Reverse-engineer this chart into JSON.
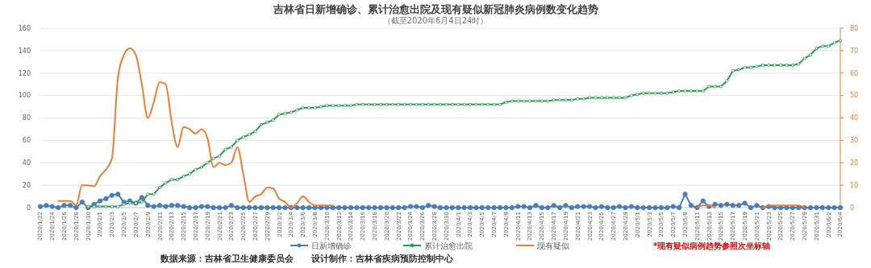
{
  "chart_data": {
    "type": "line",
    "title": "吉林省日新增确诊、累计治愈出院及现有疑似新冠肺炎病例数变化趋势",
    "subtitle": "（截至2020年6月4日24时）",
    "categories": [
      "2020/1/22",
      null,
      "2020/1/24",
      null,
      "2020/1/26",
      null,
      "2020/1/28",
      null,
      "2020/1/30",
      null,
      "2020/2/1",
      null,
      "2020/2/3",
      null,
      "2020/2/5",
      null,
      "2020/2/7",
      null,
      "2020/2/9",
      null,
      "2020/2/11",
      null,
      "2020/2/13",
      null,
      "2020/2/15",
      null,
      "2020/2/17",
      null,
      "2020/2/19",
      null,
      "2020/2/21",
      null,
      "2020/2/23",
      null,
      "2020/2/25",
      null,
      "2020/2/27",
      null,
      "2020/2/29",
      null,
      "2020/3/2",
      null,
      "2020/3/4",
      null,
      "2020/3/6",
      null,
      "2020/3/8",
      null,
      "2020/3/10",
      null,
      "2020/3/12",
      null,
      "2020/3/14",
      null,
      "2020/3/16",
      null,
      "2020/3/18",
      null,
      "2020/3/20",
      null,
      "2020/3/22",
      null,
      "2020/3/24",
      null,
      "2020/3/26",
      null,
      "2020/3/28",
      null,
      "2020/3/30",
      null,
      "2020/4/1",
      null,
      "2020/4/3",
      null,
      "2020/4/5",
      null,
      "2020/4/7",
      null,
      "2020/4/9",
      null,
      "2020/4/11",
      null,
      "2020/4/13",
      null,
      "2020/4/15",
      null,
      "2020/4/17",
      null,
      "2020/4/19",
      null,
      "2020/4/21",
      null,
      "2020/4/23",
      null,
      "2020/4/25",
      null,
      "2020/4/27",
      null,
      "2020/4/29",
      null,
      "2020/5/1",
      null,
      "2020/5/3",
      null,
      "2020/5/5",
      null,
      "2020/5/7",
      null,
      "2020/5/9",
      null,
      "2020/5/11",
      null,
      "2020/5/13",
      null,
      "2020/5/15",
      null,
      "2020/5/17",
      null,
      "2020/5/19",
      null,
      "2020/5/21",
      null,
      "2020/5/23",
      null,
      "2020/5/25",
      null,
      "2020/5/27",
      null,
      "2020/5/29",
      null,
      "2020/5/31",
      null,
      "2020/6/2",
      null,
      "2020/6/4"
    ],
    "series": [
      {
        "name": "日新增确诊",
        "color": "#4a7ebb",
        "values": [
          1,
          2,
          1,
          0,
          2,
          2,
          0,
          5,
          0,
          3,
          6,
          8,
          11,
          12,
          5,
          6,
          4,
          9,
          2,
          1,
          2,
          1,
          2,
          2,
          1,
          0,
          0,
          1,
          1,
          0,
          0,
          0,
          2,
          0,
          0,
          0,
          0,
          0,
          0,
          0,
          0,
          0,
          0,
          0,
          0,
          0,
          0,
          0,
          0,
          0,
          0,
          0,
          0,
          0,
          0,
          0,
          0,
          0,
          0,
          0,
          0,
          0,
          1,
          1,
          0,
          2,
          1,
          0,
          0,
          0,
          0,
          0,
          0,
          0,
          0,
          0,
          0,
          0,
          0,
          0,
          1,
          1,
          0,
          2,
          0,
          0,
          2,
          0,
          2,
          0,
          1,
          1,
          1,
          0,
          1,
          0,
          0,
          1,
          0,
          1,
          0,
          0,
          0,
          0,
          0,
          0,
          1,
          0,
          12,
          2,
          0,
          6,
          1,
          3,
          2,
          3,
          2,
          2,
          4,
          0,
          2,
          0,
          1,
          0,
          0,
          0,
          0,
          0,
          0,
          0,
          0,
          0,
          0,
          0,
          0
        ]
      },
      {
        "name": "累计治愈出院",
        "color": "#2e9c4f",
        "values": [
          null,
          null,
          null,
          null,
          null,
          null,
          null,
          null,
          1,
          1,
          1,
          1,
          1,
          1,
          3,
          4,
          4,
          5,
          12,
          12,
          18,
          22,
          25,
          25,
          28,
          30,
          34,
          36,
          40,
          44,
          46,
          52,
          54,
          60,
          63,
          65,
          68,
          74,
          76,
          78,
          83,
          84,
          85,
          87,
          89,
          89,
          89,
          90,
          91,
          91,
          91,
          91,
          91,
          92,
          92,
          92,
          92,
          92,
          92,
          92,
          92,
          92,
          92,
          92,
          92,
          92,
          92,
          92,
          92,
          92,
          92,
          92,
          92,
          92,
          92,
          92,
          92,
          92,
          94,
          95,
          95,
          95,
          95,
          95,
          95,
          95,
          96,
          96,
          96,
          96,
          97,
          97,
          98,
          98,
          98,
          98,
          98,
          98,
          98,
          100,
          101,
          102,
          102,
          102,
          102,
          102,
          103,
          104,
          104,
          104,
          104,
          104,
          108,
          108,
          108,
          113,
          122,
          123,
          125,
          125,
          126,
          127,
          127,
          127,
          127,
          127,
          127,
          128,
          133,
          136,
          142,
          144,
          144,
          147,
          149
        ]
      },
      {
        "name": "现有疑似",
        "color": "#ed7d31",
        "axis": "y2",
        "marker": "none",
        "values": [
          null,
          null,
          null,
          3,
          3,
          3,
          1,
          10,
          10,
          9.5,
          14,
          17,
          22,
          58,
          68,
          71,
          68,
          55,
          40,
          47,
          56,
          55,
          38,
          27,
          36,
          35,
          33,
          35,
          31,
          18,
          20,
          19,
          20,
          27,
          15,
          2.5,
          5,
          6,
          9,
          8.5,
          4,
          2.5,
          0,
          2,
          5,
          2.5,
          1,
          1,
          1,
          1,
          null,
          null,
          null,
          null,
          null,
          null,
          null,
          null,
          null,
          null,
          null,
          null,
          null,
          null,
          null,
          null,
          null,
          null,
          null,
          null,
          null,
          null,
          null,
          null,
          null,
          null,
          null,
          null,
          null,
          null,
          null,
          null,
          null,
          null,
          null,
          null,
          null,
          null,
          null,
          null,
          null,
          null,
          null,
          null,
          null,
          null,
          null,
          null,
          null,
          null,
          null,
          null,
          null,
          null,
          null,
          null,
          null,
          null,
          null,
          null,
          0,
          1,
          1,
          0,
          null,
          null,
          null,
          null,
          null,
          null,
          null,
          0,
          1,
          1,
          1,
          1,
          1,
          1,
          0,
          null,
          null,
          null,
          null,
          null,
          null
        ]
      }
    ],
    "ylim": [
      0,
      160
    ],
    "yticks": [
      0,
      20,
      40,
      60,
      80,
      100,
      120,
      140,
      160
    ],
    "y2lim": [
      0,
      80
    ],
    "y2ticks": [
      0,
      10,
      20,
      30,
      40,
      50,
      60,
      70,
      80
    ],
    "grid": "y",
    "legend": "bottom",
    "marker": "circle",
    "annotations": [
      "*现有疑似病例趋势参照次坐标轴",
      "数据来源：吉林省卫生健康委员会　　设计制作：吉林省疾病预防控制中心"
    ]
  }
}
